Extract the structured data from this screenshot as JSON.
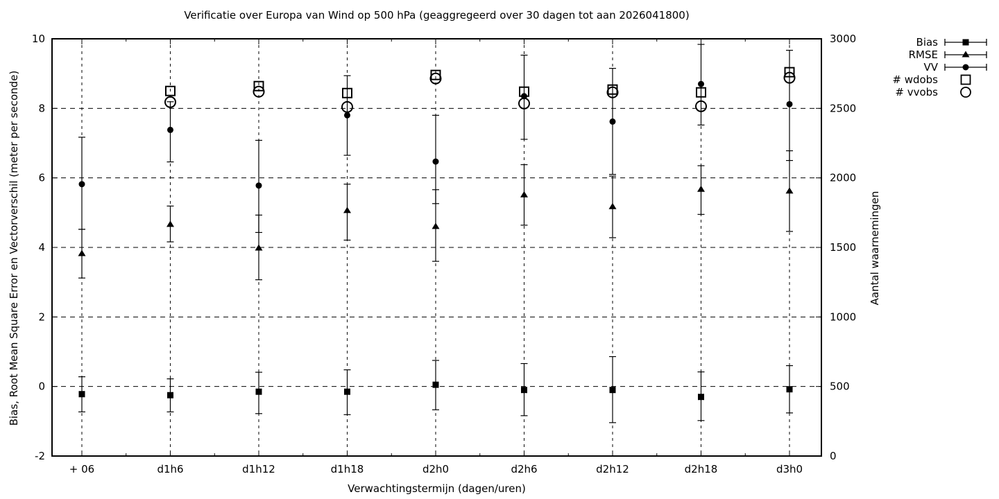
{
  "title": "Verificatie over Europa van Wind op 500 hPa (geaggregeerd over 30 dagen tot aan 2026041800)",
  "axes": {
    "left": {
      "label": "Bias, Root Mean Square Error en Vectorverschil (meter per seconde)",
      "tick_labels": [
        "10",
        "8",
        "6",
        "4",
        "2",
        "0",
        "-2"
      ],
      "tick_values": [
        10,
        8,
        6,
        4,
        2,
        0,
        -2
      ]
    },
    "right": {
      "label": "Aantal waarnemingen",
      "tick_labels": [
        "3000",
        "2500",
        "2000",
        "1500",
        "1000",
        "500",
        "0"
      ],
      "tick_values": [
        3000,
        2500,
        2000,
        1500,
        1000,
        500,
        0
      ]
    },
    "x": {
      "label": "Verwachtingstermijn (dagen/uren)"
    }
  },
  "legend": {
    "items": [
      {
        "label": "Bias"
      },
      {
        "label": "RMSE"
      },
      {
        "label": "VV"
      },
      {
        "label": "# wdobs"
      },
      {
        "label": "# vvobs"
      }
    ]
  },
  "colors": {
    "foreground": "#000000",
    "background": "#ffffff"
  },
  "chart_data": {
    "type": "scatter",
    "title": "Verificatie over Europa van Wind op 500 hPa (geaggregeerd over 30 dagen tot aan 2026041800)",
    "categories": [
      "+ 06",
      "d1h6",
      "d1h12",
      "d1h18",
      "d2h0",
      "d2h6",
      "d2h12",
      "d2h18",
      "d3h0"
    ],
    "left_ylim": [
      -2,
      10
    ],
    "right_ylim": [
      0,
      3000
    ],
    "grid": true,
    "legend_position": "outside-right",
    "series": [
      {
        "name": "Bias",
        "axis": "left",
        "marker": "filled-square",
        "values": [
          -0.22,
          -0.25,
          -0.15,
          -0.15,
          0.05,
          -0.1,
          -0.1,
          -0.3,
          -0.08
        ],
        "err_lo": [
          -0.73,
          -0.73,
          -0.78,
          -0.81,
          -0.67,
          -0.84,
          -1.04,
          -0.98,
          -0.76
        ],
        "err_hi": [
          0.28,
          0.22,
          0.41,
          0.48,
          0.75,
          0.66,
          0.86,
          0.42,
          0.6
        ]
      },
      {
        "name": "RMSE",
        "axis": "left",
        "marker": "filled-triangle",
        "values": [
          3.82,
          4.66,
          3.98,
          5.06,
          4.6,
          5.51,
          5.17,
          5.67,
          5.62
        ],
        "err_lo": [
          3.12,
          4.16,
          3.07,
          4.21,
          3.6,
          4.64,
          4.28,
          4.95,
          4.46
        ],
        "err_hi": [
          4.52,
          5.19,
          4.93,
          5.82,
          5.66,
          6.38,
          6.05,
          6.35,
          6.78
        ]
      },
      {
        "name": "VV",
        "axis": "left",
        "marker": "filled-circle",
        "values": [
          5.82,
          7.38,
          5.78,
          7.8,
          6.47,
          8.35,
          7.62,
          8.7,
          8.12
        ],
        "err_lo": [
          4.52,
          6.46,
          4.43,
          6.65,
          5.26,
          7.11,
          6.1,
          7.52,
          6.5
        ],
        "err_hi": [
          7.17,
          8.19,
          7.08,
          8.94,
          7.8,
          9.53,
          9.15,
          9.84,
          9.67
        ]
      },
      {
        "name": "# wdobs",
        "axis": "right",
        "marker": "open-square",
        "values": [
          null,
          2625,
          2660,
          2610,
          2740,
          2620,
          2635,
          2615,
          2760
        ]
      },
      {
        "name": "# vvobs",
        "axis": "right",
        "marker": "open-circle",
        "values": [
          null,
          2545,
          2620,
          2510,
          2715,
          2535,
          2615,
          2515,
          2720
        ]
      }
    ]
  }
}
